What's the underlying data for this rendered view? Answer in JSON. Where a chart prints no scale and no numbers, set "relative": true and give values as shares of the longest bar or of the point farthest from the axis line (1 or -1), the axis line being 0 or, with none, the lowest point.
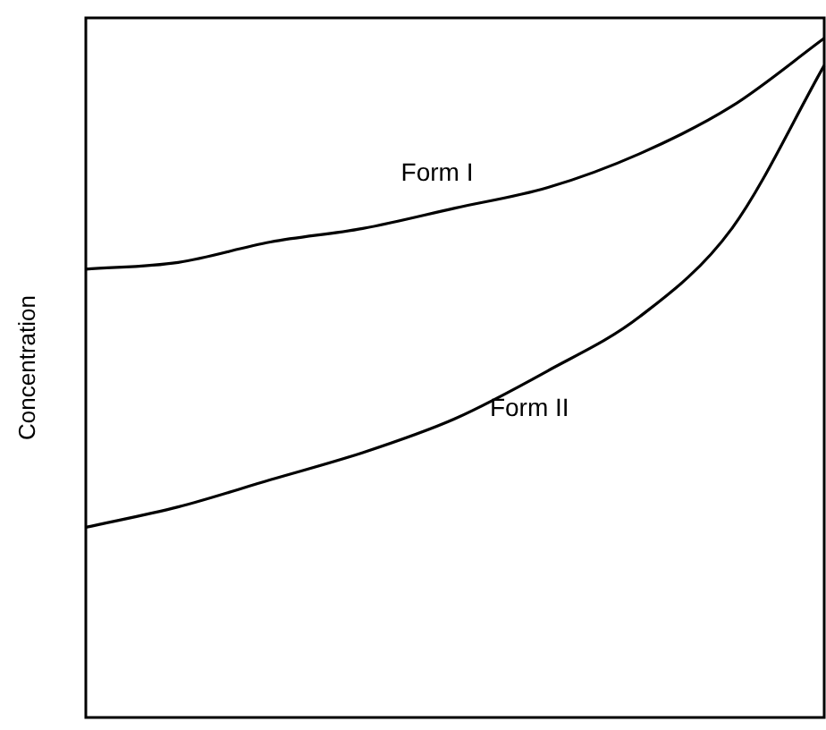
{
  "chart_data": {
    "type": "line",
    "relative": true,
    "ylabel": "Concentration",
    "categories": [
      null,
      null,
      null,
      null,
      null,
      null,
      null,
      null,
      null
    ],
    "legend": false,
    "marker": "none",
    "line_style": "solid",
    "series": [
      {
        "name": "Form I",
        "color": "#000000",
        "values": [
          0.66,
          0.67,
          0.7,
          0.72,
          0.75,
          0.78,
          0.83,
          0.9,
          1
        ]
      },
      {
        "name": "Form II",
        "color": "#000000",
        "values": [
          0.28,
          0.31,
          0.35,
          0.39,
          0.44,
          0.51,
          0.59,
          0.72,
          0.96
        ]
      }
    ]
  }
}
